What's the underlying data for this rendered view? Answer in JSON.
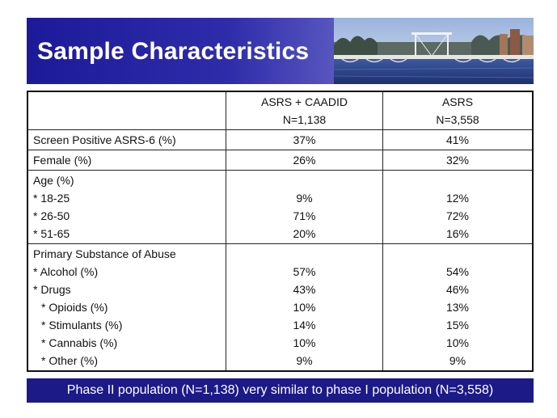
{
  "header": {
    "title": "Sample Characteristics"
  },
  "table": {
    "columns": [
      "",
      "ASRS + CAADID",
      "ASRS"
    ],
    "columns_n": [
      "",
      "N=1,138",
      "N=3,558"
    ],
    "rows": {
      "screen": {
        "label": "Screen Positive ASRS-6 (%)",
        "a": "37%",
        "b": "41%"
      },
      "female": {
        "label": "Female (%)",
        "a": "26%",
        "b": "32%"
      },
      "age": {
        "heading": "Age (%)",
        "items": [
          {
            "label": "* 18-25",
            "a": "9%",
            "b": "12%"
          },
          {
            "label": "* 26-50",
            "a": "71%",
            "b": "72%"
          },
          {
            "label": "* 51-65",
            "a": "20%",
            "b": "16%"
          }
        ]
      },
      "abuse": {
        "heading": "Primary Substance of Abuse",
        "items": [
          {
            "label": "* Alcohol (%)",
            "a": "57%",
            "b": "54%"
          },
          {
            "label": "* Drugs",
            "a": "43%",
            "b": "46%"
          },
          {
            "label": "* Opioids (%)",
            "a": "10%",
            "b": "13%"
          },
          {
            "label": "* Stimulants (%)",
            "a": "14%",
            "b": "15%"
          },
          {
            "label": "* Cannabis (%)",
            "a": "10%",
            "b": "10%"
          },
          {
            "label": "* Other (%)",
            "a": "9%",
            "b": "9%"
          }
        ]
      }
    }
  },
  "footer": {
    "text": "Phase II population (N=1,138) very similar to phase I population (N=3,558)"
  },
  "colors": {
    "header_dark": "#1c1a99",
    "footer_bg": "#1c1a87"
  }
}
